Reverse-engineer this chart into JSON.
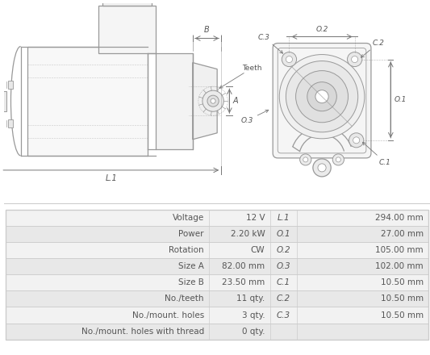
{
  "table_data": {
    "left_labels": [
      "Voltage",
      "Power",
      "Rotation",
      "Size A",
      "Size B",
      "No./teeth",
      "No./mount. holes",
      "No./mount. holes with thread"
    ],
    "left_values": [
      "12 V",
      "2.20 kW",
      "CW",
      "82.00 mm",
      "23.50 mm",
      "11 qty.",
      "3 qty.",
      "0 qty."
    ],
    "right_labels": [
      "L.1",
      "O.1",
      "O.2",
      "O.3",
      "C.1",
      "C.2",
      "C.3",
      ""
    ],
    "right_values": [
      "294.00 mm",
      "27.00 mm",
      "105.00 mm",
      "102.00 mm",
      "10.50 mm",
      "10.50 mm",
      "10.50 mm",
      ""
    ]
  },
  "bg_color": "#ffffff",
  "table_row_bg1": "#f2f2f2",
  "table_row_bg2": "#e8e8e8",
  "table_border": "#cccccc",
  "text_color": "#555555",
  "line_color": "#999999",
  "dim_line_color": "#777777"
}
